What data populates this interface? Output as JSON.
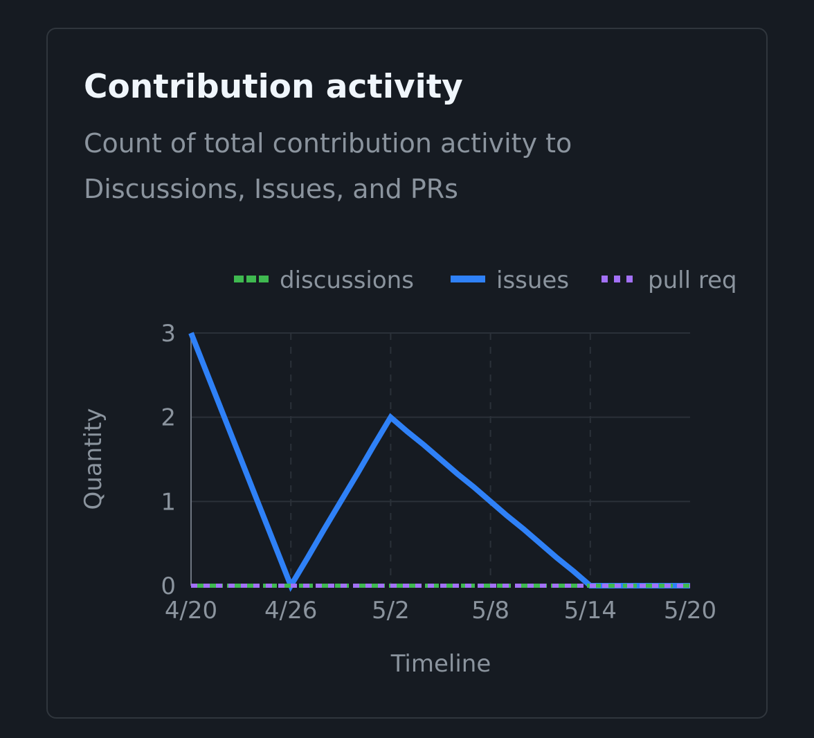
{
  "card": {
    "title": "Contribution activity",
    "subtitle": "Count of total contribution activity to Discussions, Issues, and PRs"
  },
  "colors": {
    "background": "#161b22",
    "border": "#30363d",
    "title": "#f0f6fc",
    "muted": "#8b949e",
    "grid": "#2b3139",
    "discussions": "#3fb950",
    "issues": "#2f81f7",
    "pull_requests": "#a371f7"
  },
  "chart_data": {
    "type": "line",
    "xlabel": "Timeline",
    "ylabel": "Quantity",
    "x": [
      "4/20",
      "4/21",
      "4/22",
      "4/23",
      "4/24",
      "4/25",
      "4/26",
      "4/27",
      "4/28",
      "4/29",
      "4/30",
      "5/1",
      "5/2",
      "5/3",
      "5/4",
      "5/5",
      "5/6",
      "5/7",
      "5/8",
      "5/9",
      "5/10",
      "5/11",
      "5/12",
      "5/13",
      "5/14",
      "5/15",
      "5/16",
      "5/17",
      "5/18",
      "5/19",
      "5/20"
    ],
    "x_ticks": [
      "4/20",
      "4/26",
      "5/2",
      "5/8",
      "5/14",
      "5/20"
    ],
    "y_ticks": [
      0,
      1,
      2,
      3
    ],
    "ylim": [
      0,
      3
    ],
    "legend_position": "top",
    "series": [
      {
        "name": "discussions",
        "style": "dashed",
        "values": [
          0,
          0,
          0,
          0,
          0,
          0,
          0,
          0,
          0,
          0,
          0,
          0,
          0,
          0,
          0,
          0,
          0,
          0,
          0,
          0,
          0,
          0,
          0,
          0,
          0,
          0,
          0,
          0,
          0,
          0,
          0
        ]
      },
      {
        "name": "issues",
        "style": "solid",
        "values": [
          3,
          2.5,
          2,
          1.5,
          1,
          0.5,
          0,
          0.33,
          0.67,
          1,
          1.33,
          1.67,
          2,
          1.83,
          1.67,
          1.5,
          1.33,
          1.17,
          1,
          0.83,
          0.67,
          0.5,
          0.33,
          0.17,
          0,
          0,
          0,
          0,
          0,
          0,
          0
        ]
      },
      {
        "name": "pull req",
        "style": "dotted",
        "values": [
          0,
          0,
          0,
          0,
          0,
          0,
          0,
          0,
          0,
          0,
          0,
          0,
          0,
          0,
          0,
          0,
          0,
          0,
          0,
          0,
          0,
          0,
          0,
          0,
          0,
          0,
          0,
          0,
          0,
          0,
          0
        ]
      }
    ]
  }
}
